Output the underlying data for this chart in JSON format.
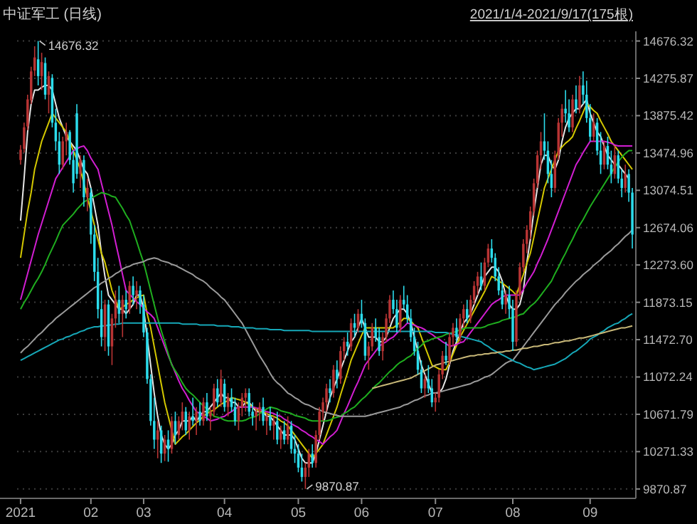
{
  "chart_data": {
    "type": "candlestick",
    "title": "中证军工 (日线)",
    "annotations": [
      "2021/1/4-2021/9/17(175根)",
      "14676.32",
      "9870.87"
    ],
    "ylim": [
      9770,
      14780
    ],
    "yticks": [
      {
        "value": 14676.32,
        "label": "14676.32"
      },
      {
        "value": 14275.87,
        "label": "14275.87"
      },
      {
        "value": 13875.42,
        "label": "13875.42"
      },
      {
        "value": 13474.96,
        "label": "13474.96"
      },
      {
        "value": 13074.51,
        "label": "13074.51"
      },
      {
        "value": 12674.06,
        "label": "12674.06"
      },
      {
        "value": 12273.6,
        "label": "12273.60"
      },
      {
        "value": 11873.15,
        "label": "11873.15"
      },
      {
        "value": 11472.7,
        "label": "11472.70"
      },
      {
        "value": 11072.24,
        "label": "11072.24"
      },
      {
        "value": 10671.79,
        "label": "10671.79"
      },
      {
        "value": 10271.33,
        "label": "10271.33"
      },
      {
        "value": 9870.87,
        "label": "9870.87"
      }
    ],
    "grid": "y",
    "categories": [
      "2021",
      null,
      null,
      null,
      null,
      null,
      null,
      null,
      null,
      null,
      null,
      null,
      null,
      null,
      null,
      null,
      null,
      null,
      null,
      null,
      "02",
      null,
      null,
      null,
      null,
      null,
      null,
      null,
      null,
      null,
      null,
      null,
      null,
      null,
      null,
      "03",
      null,
      null,
      null,
      null,
      null,
      null,
      null,
      null,
      null,
      null,
      null,
      null,
      null,
      null,
      null,
      null,
      null,
      null,
      null,
      null,
      null,
      null,
      "04",
      null,
      null,
      null,
      null,
      null,
      null,
      null,
      null,
      null,
      null,
      null,
      null,
      null,
      null,
      null,
      null,
      null,
      null,
      null,
      null,
      "05",
      null,
      null,
      null,
      null,
      null,
      null,
      null,
      null,
      null,
      null,
      null,
      null,
      null,
      null,
      null,
      null,
      null,
      "06",
      null,
      null,
      null,
      null,
      null,
      null,
      null,
      null,
      null,
      null,
      null,
      null,
      null,
      null,
      null,
      null,
      null,
      null,
      null,
      null,
      "07",
      null,
      null,
      null,
      null,
      null,
      null,
      null,
      null,
      null,
      null,
      null,
      null,
      null,
      null,
      null,
      null,
      null,
      null,
      null,
      null,
      null,
      "08",
      null,
      null,
      null,
      null,
      null,
      null,
      null,
      null,
      null,
      null,
      null,
      null,
      null,
      null,
      null,
      null,
      null,
      null,
      null,
      null,
      null,
      "09",
      null,
      null,
      null,
      null,
      null,
      null,
      null,
      null,
      null,
      null,
      null,
      null
    ],
    "ohlc": [
      [
        13400,
        13560,
        13350,
        13510
      ],
      [
        13520,
        13800,
        13480,
        13750
      ],
      [
        13760,
        14100,
        13720,
        14050
      ],
      [
        14040,
        14400,
        14000,
        14350
      ],
      [
        14360,
        14620,
        14300,
        14500
      ],
      [
        14480,
        14676.32,
        14200,
        14300
      ],
      [
        14300,
        14550,
        14150,
        14450
      ],
      [
        14440,
        14500,
        14050,
        14100
      ],
      [
        14100,
        14350,
        13900,
        14300
      ],
      [
        14280,
        14320,
        13750,
        13800
      ],
      [
        13800,
        13950,
        13500,
        13600
      ],
      [
        13600,
        13700,
        13250,
        13350
      ],
      [
        13350,
        13650,
        13300,
        13600
      ],
      [
        13600,
        13800,
        13450,
        13700
      ],
      [
        13700,
        13720,
        13350,
        13400
      ],
      [
        13400,
        13500,
        13050,
        13150
      ],
      [
        13900,
        14000,
        13200,
        13250
      ],
      [
        13250,
        13450,
        13100,
        13400
      ],
      [
        13400,
        13450,
        12900,
        13000
      ],
      [
        13000,
        13200,
        12850,
        13100
      ],
      [
        13050,
        13100,
        12500,
        12600
      ],
      [
        12600,
        12700,
        12100,
        12200
      ],
      [
        12200,
        12350,
        11700,
        11800
      ],
      [
        11800,
        12000,
        11400,
        11500
      ],
      [
        11500,
        11900,
        11350,
        11850
      ],
      [
        11850,
        11900,
        11300,
        11400
      ],
      [
        11400,
        11750,
        11200,
        11700
      ],
      [
        11700,
        12000,
        11600,
        11900
      ],
      [
        11900,
        12050,
        11650,
        11750
      ],
      [
        11750,
        11950,
        11500,
        11900
      ],
      [
        11900,
        12000,
        11700,
        11800
      ],
      [
        11800,
        12100,
        11750,
        12050
      ],
      [
        12050,
        12150,
        11850,
        11950
      ],
      [
        11950,
        12100,
        11800,
        12000
      ],
      [
        12000,
        12050,
        11750,
        11850
      ],
      [
        11850,
        11950,
        11500,
        11550
      ],
      [
        11550,
        11600,
        11000,
        11050
      ],
      [
        11050,
        11100,
        10550,
        10600
      ],
      [
        10600,
        10850,
        10300,
        10400
      ],
      [
        10400,
        10600,
        10200,
        10500
      ],
      [
        10500,
        10550,
        10150,
        10250
      ],
      [
        10250,
        10450,
        10170,
        10400
      ],
      [
        10400,
        10500,
        10163,
        10300
      ],
      [
        10300,
        10650,
        10250,
        10600
      ],
      [
        10600,
        10700,
        10350,
        10450
      ],
      [
        10450,
        10650,
        10400,
        10600
      ],
      [
        10600,
        10800,
        10500,
        10700
      ],
      [
        10700,
        10750,
        10450,
        10500
      ],
      [
        10500,
        10700,
        10400,
        10650
      ],
      [
        10650,
        10850,
        10550,
        10600
      ],
      [
        10600,
        10750,
        10450,
        10700
      ],
      [
        10700,
        10800,
        10550,
        10600
      ],
      [
        10600,
        10850,
        10550,
        10800
      ],
      [
        10800,
        10900,
        10600,
        10650
      ],
      [
        10650,
        10750,
        10500,
        10700
      ],
      [
        10700,
        11000,
        10650,
        10950
      ],
      [
        10950,
        11050,
        10750,
        10800
      ],
      [
        10800,
        11150,
        10750,
        11050
      ],
      [
        11000,
        11050,
        10700,
        10750
      ],
      [
        10750,
        10900,
        10650,
        10850
      ],
      [
        10850,
        10950,
        10700,
        10750
      ],
      [
        10750,
        10850,
        10550,
        10600
      ],
      [
        10600,
        10800,
        10500,
        10750
      ],
      [
        10750,
        10900,
        10650,
        10850
      ],
      [
        10850,
        10950,
        10700,
        10900
      ],
      [
        10900,
        10950,
        10650,
        10700
      ],
      [
        10700,
        10800,
        10550,
        10650
      ],
      [
        10650,
        10750,
        10500,
        10700
      ],
      [
        10700,
        10800,
        10600,
        10750
      ],
      [
        10750,
        10850,
        10550,
        10600
      ],
      [
        10600,
        10700,
        10450,
        10650
      ],
      [
        10650,
        10750,
        10500,
        10550
      ],
      [
        10550,
        10650,
        10400,
        10600
      ],
      [
        10600,
        10700,
        10350,
        10400
      ],
      [
        10400,
        10550,
        10300,
        10500
      ],
      [
        10500,
        10600,
        10350,
        10400
      ],
      [
        10400,
        10650,
        10350,
        10550
      ],
      [
        10550,
        10600,
        10250,
        10300
      ],
      [
        10300,
        10450,
        10150,
        10250
      ],
      [
        10250,
        10350,
        10050,
        10100
      ],
      [
        10100,
        10250,
        9950,
        10000
      ],
      [
        10000,
        10150,
        9870.87,
        10100
      ],
      [
        10100,
        10300,
        10000,
        10250
      ],
      [
        10250,
        10350,
        10100,
        10150
      ],
      [
        10150,
        10500,
        10100,
        10450
      ],
      [
        10450,
        10750,
        10400,
        10700
      ],
      [
        10700,
        10850,
        10600,
        10800
      ],
      [
        10800,
        11000,
        10700,
        10950
      ],
      [
        10950,
        11050,
        10800,
        10900
      ],
      [
        10900,
        11200,
        10850,
        11150
      ],
      [
        11150,
        11250,
        10950,
        11050
      ],
      [
        11050,
        11400,
        11000,
        11350
      ],
      [
        11350,
        11500,
        11250,
        11450
      ],
      [
        11450,
        11550,
        11300,
        11400
      ],
      [
        11400,
        11700,
        11350,
        11650
      ],
      [
        11650,
        11750,
        11500,
        11600
      ],
      [
        11600,
        11800,
        11550,
        11750
      ],
      [
        11750,
        11900,
        11600,
        11650
      ],
      [
        11650,
        11700,
        11250,
        11300
      ],
      [
        11300,
        11450,
        11150,
        11400
      ],
      [
        11400,
        11650,
        11350,
        11600
      ],
      [
        11600,
        11700,
        11450,
        11500
      ],
      [
        11500,
        11600,
        11300,
        11350
      ],
      [
        11350,
        11550,
        11250,
        11500
      ],
      [
        11500,
        11750,
        11450,
        11700
      ],
      [
        11700,
        11950,
        11650,
        11900
      ],
      [
        11900,
        12000,
        11750,
        11800
      ],
      [
        11800,
        11900,
        11550,
        11600
      ],
      [
        11600,
        11950,
        11550,
        11900
      ],
      [
        11900,
        12050,
        11800,
        11850
      ],
      [
        11850,
        11950,
        11650,
        11700
      ],
      [
        11700,
        11800,
        11450,
        11500
      ],
      [
        11500,
        11600,
        11300,
        11350
      ],
      [
        11350,
        11450,
        11100,
        11150
      ],
      [
        11150,
        11250,
        10900,
        10950
      ],
      [
        10950,
        11100,
        10850,
        11050
      ],
      [
        11050,
        11200,
        10900,
        10950
      ],
      [
        10950,
        11050,
        10750,
        10800
      ],
      [
        10800,
        10900,
        10700,
        10850
      ],
      [
        10850,
        11150,
        10800,
        11100
      ],
      [
        11100,
        11350,
        11050,
        11300
      ],
      [
        11300,
        11450,
        11200,
        11250
      ],
      [
        11250,
        11550,
        11200,
        11500
      ],
      [
        11500,
        11650,
        11400,
        11600
      ],
      [
        11600,
        11700,
        11450,
        11500
      ],
      [
        11500,
        11750,
        11450,
        11700
      ],
      [
        11700,
        11850,
        11600,
        11800
      ],
      [
        11800,
        11900,
        11650,
        11700
      ],
      [
        11700,
        11950,
        11650,
        11900
      ],
      [
        11900,
        12100,
        11850,
        12050
      ],
      [
        12050,
        12200,
        11950,
        12150
      ],
      [
        12150,
        12300,
        12000,
        12050
      ],
      [
        12050,
        12350,
        12000,
        12300
      ],
      [
        12300,
        12500,
        12250,
        12450
      ],
      [
        12450,
        12550,
        12300,
        12350
      ],
      [
        12350,
        12400,
        12100,
        12150
      ],
      [
        12150,
        12250,
        11950,
        12000
      ],
      [
        12000,
        12100,
        11800,
        11850
      ],
      [
        11850,
        12000,
        11750,
        11950
      ],
      [
        11950,
        12050,
        11700,
        11800
      ],
      [
        11800,
        11900,
        11350,
        11450
      ],
      [
        11450,
        12000,
        11400,
        11950
      ],
      [
        11950,
        12300,
        11900,
        12250
      ],
      [
        12250,
        12550,
        12200,
        12500
      ],
      [
        12500,
        12700,
        12400,
        12650
      ],
      [
        12650,
        12900,
        12550,
        12850
      ],
      [
        12850,
        13200,
        12800,
        13150
      ],
      [
        13150,
        13500,
        13100,
        13450
      ],
      [
        13450,
        13700,
        13300,
        13600
      ],
      [
        13600,
        13900,
        13400,
        13500
      ],
      [
        13500,
        13600,
        13150,
        13250
      ],
      [
        13250,
        13400,
        13000,
        13100
      ],
      [
        13100,
        13500,
        13050,
        13450
      ],
      [
        13450,
        13850,
        13400,
        13800
      ],
      [
        13800,
        14000,
        13650,
        13950
      ],
      [
        13950,
        14150,
        13800,
        13900
      ],
      [
        13900,
        14050,
        13700,
        13750
      ],
      [
        13750,
        14100,
        13700,
        14050
      ],
      [
        14050,
        14200,
        13900,
        13950
      ],
      [
        13950,
        14300,
        13900,
        14200
      ],
      [
        14200,
        14350,
        14000,
        14100
      ],
      [
        14100,
        14250,
        13800,
        13850
      ],
      [
        13850,
        14000,
        13600,
        13650
      ],
      [
        13650,
        13900,
        13600,
        13800
      ],
      [
        13800,
        13850,
        13450,
        13500
      ],
      [
        13500,
        13700,
        13250,
        13350
      ],
      [
        13350,
        13600,
        13300,
        13550
      ],
      [
        13550,
        13650,
        13300,
        13350
      ],
      [
        13350,
        13500,
        13150,
        13250
      ],
      [
        13250,
        13550,
        13200,
        13450
      ],
      [
        13450,
        13500,
        13150,
        13200
      ],
      [
        13200,
        13300,
        13000,
        13100
      ],
      [
        13100,
        13350,
        13050,
        13250
      ],
      [
        13250,
        13300,
        12950,
        13050
      ],
      [
        13050,
        13100,
        12450,
        12600
      ]
    ],
    "series": [
      {
        "type": "line",
        "color": "#e6e6e6",
        "values": [
          12750,
          13200,
          13700,
          14000,
          14150,
          14150,
          14180,
          14200,
          14200,
          14150,
          14000,
          13850,
          13750,
          13650,
          13600,
          13550,
          13500,
          13400,
          13300,
          13250,
          13100,
          12900,
          12700,
          12400,
          12150,
          11950,
          11900,
          11850,
          11800,
          11800,
          11750,
          11800,
          11850,
          11950,
          11950,
          11800,
          11500,
          11200,
          10900,
          10650,
          10450,
          10350,
          10300,
          10350,
          10450,
          10500,
          10600,
          10600,
          10600,
          10650,
          10600,
          10650,
          10700,
          10700,
          10750,
          10800,
          10850,
          10900,
          10850,
          10850,
          10800,
          10800,
          10750,
          10750,
          10800,
          10800,
          10750,
          10700,
          10700,
          10700,
          10650,
          10650,
          10600,
          10550,
          10500,
          10450,
          10450,
          10450,
          10400,
          10300,
          10200,
          10150,
          10150,
          10150,
          10250,
          10400,
          10550,
          10700,
          10850,
          10950,
          11050,
          11150,
          11250,
          11350,
          11450,
          11500,
          11600,
          11700,
          11600,
          11500,
          11500,
          11500,
          11450,
          11450,
          11500,
          11600,
          11700,
          11750,
          11800,
          11800,
          11750,
          11650,
          11500,
          11350,
          11200,
          11100,
          11000,
          10900,
          10900,
          10900,
          10950,
          11050,
          11200,
          11350,
          11450,
          11550,
          11650,
          11700,
          11750,
          11850,
          11950,
          12050,
          12150,
          12200,
          12250,
          12250,
          12200,
          12100,
          11950,
          11850,
          11800,
          11800,
          11850,
          12000,
          12300,
          12550,
          12850,
          13100,
          13350,
          13450,
          13450,
          13350,
          13300,
          13400,
          13600,
          13750,
          13850,
          13900,
          13950,
          13950,
          14000,
          14050,
          13900,
          13800,
          13700,
          13650,
          13550,
          13450,
          13400,
          13350,
          13350,
          13300,
          13250,
          13200,
          null
        ]
      },
      {
        "type": "line",
        "color": "#d4c800",
        "values": [
          12350,
          12600,
          12850,
          13050,
          13300,
          13450,
          13600,
          13700,
          13800,
          13900,
          13850,
          13800,
          13750,
          13700,
          13600,
          13500,
          13400,
          13300,
          13150,
          13000,
          12850,
          12700,
          12550,
          12400,
          12300,
          12150,
          12000,
          11900,
          11800,
          11820,
          11850,
          11870,
          11900,
          11920,
          11940,
          11950,
          11750,
          11600,
          11400,
          11200,
          11000,
          10800,
          10650,
          10500,
          10350,
          10390,
          10430,
          10460,
          10500,
          10540,
          10580,
          10610,
          10650,
          10680,
          10700,
          10720,
          10750,
          10780,
          10800,
          10820,
          10850,
          10840,
          10830,
          10820,
          10800,
          10780,
          10750,
          10730,
          10700,
          10690,
          10680,
          10660,
          10650,
          10630,
          10600,
          10580,
          10550,
          10500,
          10450,
          10400,
          10350,
          10300,
          10250,
          10200,
          10250,
          10300,
          10350,
          10450,
          10550,
          10650,
          10750,
          10880,
          11000,
          11120,
          11250,
          11340,
          11430,
          11520,
          11600,
          11600,
          11600,
          11600,
          11600,
          11600,
          11600,
          11600,
          11600,
          11630,
          11660,
          11700,
          11700,
          11670,
          11630,
          11600,
          11500,
          11400,
          11300,
          11200,
          11180,
          11160,
          11150,
          11150,
          11230,
          11320,
          11410,
          11500,
          11570,
          11640,
          11710,
          11780,
          11850,
          11920,
          11990,
          12070,
          12150,
          12130,
          12100,
          12080,
          12050,
          12020,
          11990,
          11950,
          12060,
          12170,
          12290,
          12400,
          12570,
          12750,
          12920,
          13100,
          13200,
          13300,
          13400,
          13500,
          13540,
          13580,
          13610,
          13650,
          13740,
          13820,
          13910,
          14000,
          13970,
          13930,
          13900,
          13820,
          13750,
          13680,
          13600,
          13550,
          13500,
          13450,
          13400,
          13350,
          13300
        ]
      },
      {
        "type": "line",
        "color": "#d21ed2",
        "values": [
          11900,
          12040,
          12180,
          12320,
          12460,
          12600,
          12720,
          12840,
          12960,
          13080,
          13200,
          13260,
          13320,
          13380,
          13440,
          13500,
          13520,
          13540,
          13550,
          13500,
          13420,
          13360,
          13300,
          13150,
          13000,
          12850,
          12700,
          12520,
          12350,
          12170,
          12000,
          11960,
          11920,
          11880,
          11850,
          11810,
          11770,
          11740,
          11700,
          11600,
          11500,
          11400,
          11300,
          11210,
          11120,
          11030,
          10950,
          10890,
          10820,
          10760,
          10700,
          10680,
          10650,
          10630,
          10600,
          10610,
          10620,
          10640,
          10650,
          10680,
          10700,
          10730,
          10750,
          10750,
          10750,
          10750,
          10750,
          10740,
          10730,
          10710,
          10700,
          10690,
          10680,
          10660,
          10650,
          10620,
          10600,
          10570,
          10550,
          10530,
          10500,
          10480,
          10450,
          10430,
          10400,
          10380,
          10350,
          10390,
          10430,
          10460,
          10500,
          10590,
          10680,
          10760,
          10850,
          10940,
          11020,
          11110,
          11200,
          11250,
          11300,
          11350,
          11400,
          11430,
          11450,
          11480,
          11500,
          11540,
          11580,
          11610,
          11650,
          11640,
          11630,
          11610,
          11600,
          11580,
          11550,
          11530,
          11500,
          11480,
          11450,
          11430,
          11400,
          11410,
          11420,
          11440,
          11450,
          11500,
          11550,
          11600,
          11650,
          11700,
          11750,
          11800,
          11850,
          11880,
          11900,
          11930,
          11950,
          11950,
          11950,
          11950,
          11950,
          12010,
          12080,
          12140,
          12200,
          12290,
          12370,
          12460,
          12550,
          12650,
          12750,
          12850,
          12950,
          13050,
          13150,
          13250,
          13350,
          13410,
          13480,
          13540,
          13600,
          13600,
          13600,
          13600,
          13600,
          13590,
          13580,
          13560,
          13550,
          13550,
          13550,
          13550,
          13550
        ]
      },
      {
        "type": "line",
        "color": "#1fae1f",
        "values": [
          11800,
          11870,
          11930,
          12000,
          12070,
          12130,
          12200,
          12280,
          12370,
          12450,
          12530,
          12620,
          12700,
          12740,
          12780,
          12820,
          12870,
          12910,
          12950,
          12970,
          12990,
          13010,
          13030,
          13050,
          13040,
          13030,
          13010,
          13000,
          12940,
          12880,
          12810,
          12750,
          12640,
          12530,
          12410,
          12300,
          12150,
          12000,
          11850,
          11700,
          11570,
          11450,
          11320,
          11200,
          11140,
          11080,
          11010,
          10950,
          10910,
          10880,
          10840,
          10800,
          10760,
          10730,
          10690,
          10650,
          10640,
          10630,
          10610,
          10600,
          10600,
          10600,
          10600,
          10600,
          10610,
          10630,
          10640,
          10650,
          10680,
          10700,
          10730,
          10750,
          10740,
          10730,
          10710,
          10700,
          10690,
          10680,
          10660,
          10650,
          10640,
          10630,
          10610,
          10600,
          10600,
          10600,
          10600,
          10600,
          10610,
          10630,
          10640,
          10650,
          10680,
          10700,
          10730,
          10750,
          10790,
          10830,
          10860,
          10900,
          10940,
          10980,
          11010,
          11050,
          11090,
          11130,
          11160,
          11200,
          11230,
          11250,
          11280,
          11300,
          11340,
          11380,
          11410,
          11450,
          11460,
          11480,
          11490,
          11500,
          11510,
          11530,
          11540,
          11550,
          11560,
          11580,
          11590,
          11600,
          11600,
          11600,
          11600,
          11600,
          11610,
          11630,
          11640,
          11650,
          11660,
          11680,
          11690,
          11700,
          11710,
          11720,
          11740,
          11750,
          11790,
          11830,
          11860,
          11900,
          11950,
          12000,
          12050,
          12100,
          12180,
          12250,
          12330,
          12400,
          12480,
          12550,
          12630,
          12700,
          12760,
          12830,
          12900,
          12960,
          13020,
          13080,
          13140,
          13200,
          13260,
          13320,
          13380,
          13430,
          13470,
          13500,
          13500
        ]
      },
      {
        "type": "line",
        "color": "#9a9a9a",
        "values": [
          11330,
          11370,
          11400,
          11440,
          11480,
          11520,
          11550,
          11590,
          11630,
          11660,
          11700,
          11730,
          11760,
          11790,
          11820,
          11850,
          11880,
          11910,
          11940,
          11970,
          12000,
          12030,
          12050,
          12080,
          12100,
          12130,
          12150,
          12180,
          12200,
          12230,
          12250,
          12260,
          12280,
          12290,
          12300,
          12310,
          12330,
          12340,
          12350,
          12340,
          12320,
          12310,
          12300,
          12280,
          12270,
          12250,
          12230,
          12210,
          12190,
          12170,
          12140,
          12120,
          12100,
          12070,
          12030,
          12000,
          11970,
          11930,
          11900,
          11850,
          11800,
          11750,
          11700,
          11650,
          11580,
          11510,
          11440,
          11370,
          11300,
          11240,
          11180,
          11110,
          11050,
          11010,
          10980,
          10940,
          10900,
          10880,
          10850,
          10830,
          10800,
          10780,
          10770,
          10750,
          10730,
          10720,
          10700,
          10690,
          10680,
          10670,
          10660,
          10650,
          10650,
          10650,
          10650,
          10650,
          10650,
          10650,
          10650,
          10660,
          10670,
          10680,
          10690,
          10700,
          10710,
          10720,
          10730,
          10740,
          10750,
          10770,
          10780,
          10800,
          10820,
          10830,
          10850,
          10870,
          10880,
          10900,
          10900,
          10910,
          10920,
          10930,
          10940,
          10950,
          10960,
          10970,
          10980,
          10990,
          11000,
          11020,
          11030,
          11050,
          11070,
          11080,
          11100,
          11130,
          11160,
          11190,
          11220,
          11240,
          11250,
          11300,
          11350,
          11400,
          11450,
          11500,
          11550,
          11600,
          11650,
          11700,
          11750,
          11800,
          11850,
          11890,
          11930,
          11980,
          12020,
          12060,
          12100,
          12130,
          12170,
          12200,
          12230,
          12270,
          12300,
          12330,
          12370,
          12400,
          12430,
          12470,
          12500,
          12540,
          12580,
          12610,
          12650
        ]
      },
      {
        "type": "line",
        "color": "#16a8b8",
        "values": [
          11250,
          11270,
          11290,
          11310,
          11330,
          11350,
          11370,
          11390,
          11410,
          11430,
          11450,
          11470,
          11480,
          11500,
          11510,
          11530,
          11540,
          11560,
          11570,
          11590,
          11600,
          11610,
          11610,
          11620,
          11620,
          11630,
          11630,
          11640,
          11640,
          11650,
          11650,
          11650,
          11650,
          11650,
          11650,
          11650,
          11650,
          11650,
          11650,
          11650,
          11650,
          11650,
          11650,
          11650,
          11650,
          11650,
          11640,
          11640,
          11640,
          11640,
          11640,
          11630,
          11630,
          11630,
          11630,
          11630,
          11620,
          11620,
          11620,
          11620,
          11610,
          11610,
          11610,
          11600,
          11600,
          11600,
          11600,
          11590,
          11590,
          11590,
          11590,
          11580,
          11580,
          11580,
          11580,
          11570,
          11570,
          11570,
          11570,
          11570,
          11570,
          11570,
          11570,
          11560,
          11560,
          11560,
          11560,
          11560,
          11560,
          11560,
          11560,
          11560,
          11560,
          11560,
          11560,
          11560,
          11560,
          11560,
          11560,
          11560,
          11560,
          11560,
          11560,
          11560,
          11560,
          11560,
          11560,
          11560,
          11560,
          11560,
          11560,
          11560,
          11560,
          11560,
          11560,
          11560,
          11560,
          11560,
          11550,
          11550,
          11550,
          11550,
          11540,
          11530,
          11520,
          11510,
          11500,
          11490,
          11480,
          11470,
          11460,
          11450,
          11420,
          11400,
          11370,
          11350,
          11330,
          11310,
          11290,
          11270,
          11250,
          11230,
          11220,
          11200,
          11180,
          11170,
          11150,
          11160,
          11170,
          11180,
          11190,
          11200,
          11210,
          11230,
          11250,
          11270,
          11300,
          11330,
          11350,
          11380,
          11410,
          11440,
          11480,
          11500,
          11520,
          11550,
          11570,
          11600,
          11620,
          11640,
          11650,
          11680,
          11700,
          11730,
          11750
        ]
      },
      {
        "type": "line",
        "color": "#c8b878",
        "values": [
          null,
          null,
          null,
          null,
          null,
          null,
          null,
          null,
          null,
          null,
          null,
          null,
          null,
          null,
          null,
          null,
          null,
          null,
          null,
          null,
          null,
          null,
          null,
          null,
          null,
          null,
          null,
          null,
          null,
          null,
          null,
          null,
          null,
          null,
          null,
          null,
          null,
          null,
          null,
          null,
          null,
          null,
          null,
          null,
          null,
          null,
          null,
          null,
          null,
          null,
          null,
          null,
          null,
          null,
          null,
          null,
          null,
          null,
          null,
          null,
          null,
          null,
          null,
          null,
          null,
          null,
          null,
          null,
          null,
          null,
          null,
          null,
          null,
          null,
          null,
          null,
          null,
          null,
          null,
          null,
          null,
          null,
          null,
          null,
          null,
          null,
          null,
          null,
          null,
          null,
          null,
          null,
          null,
          null,
          null,
          null,
          null,
          null,
          null,
          null,
          10950,
          10960,
          10970,
          10980,
          10990,
          11000,
          11010,
          11020,
          11030,
          11040,
          11050,
          11060,
          11080,
          11100,
          11120,
          11140,
          11160,
          11180,
          11200,
          11210,
          11220,
          11230,
          11240,
          11250,
          11260,
          11270,
          11280,
          11290,
          11300,
          11300,
          11310,
          11310,
          11320,
          11320,
          11330,
          11330,
          11340,
          11340,
          11350,
          11350,
          11360,
          11360,
          11370,
          11380,
          11380,
          11390,
          11400,
          11400,
          11410,
          11420,
          11420,
          11430,
          11440,
          11440,
          11450,
          11460,
          11460,
          11470,
          11480,
          11490,
          11490,
          11500,
          11510,
          11520,
          11530,
          11540,
          11550,
          11560,
          11570,
          11580,
          11590,
          11600,
          11600,
          11610,
          11620
        ]
      }
    ]
  }
}
